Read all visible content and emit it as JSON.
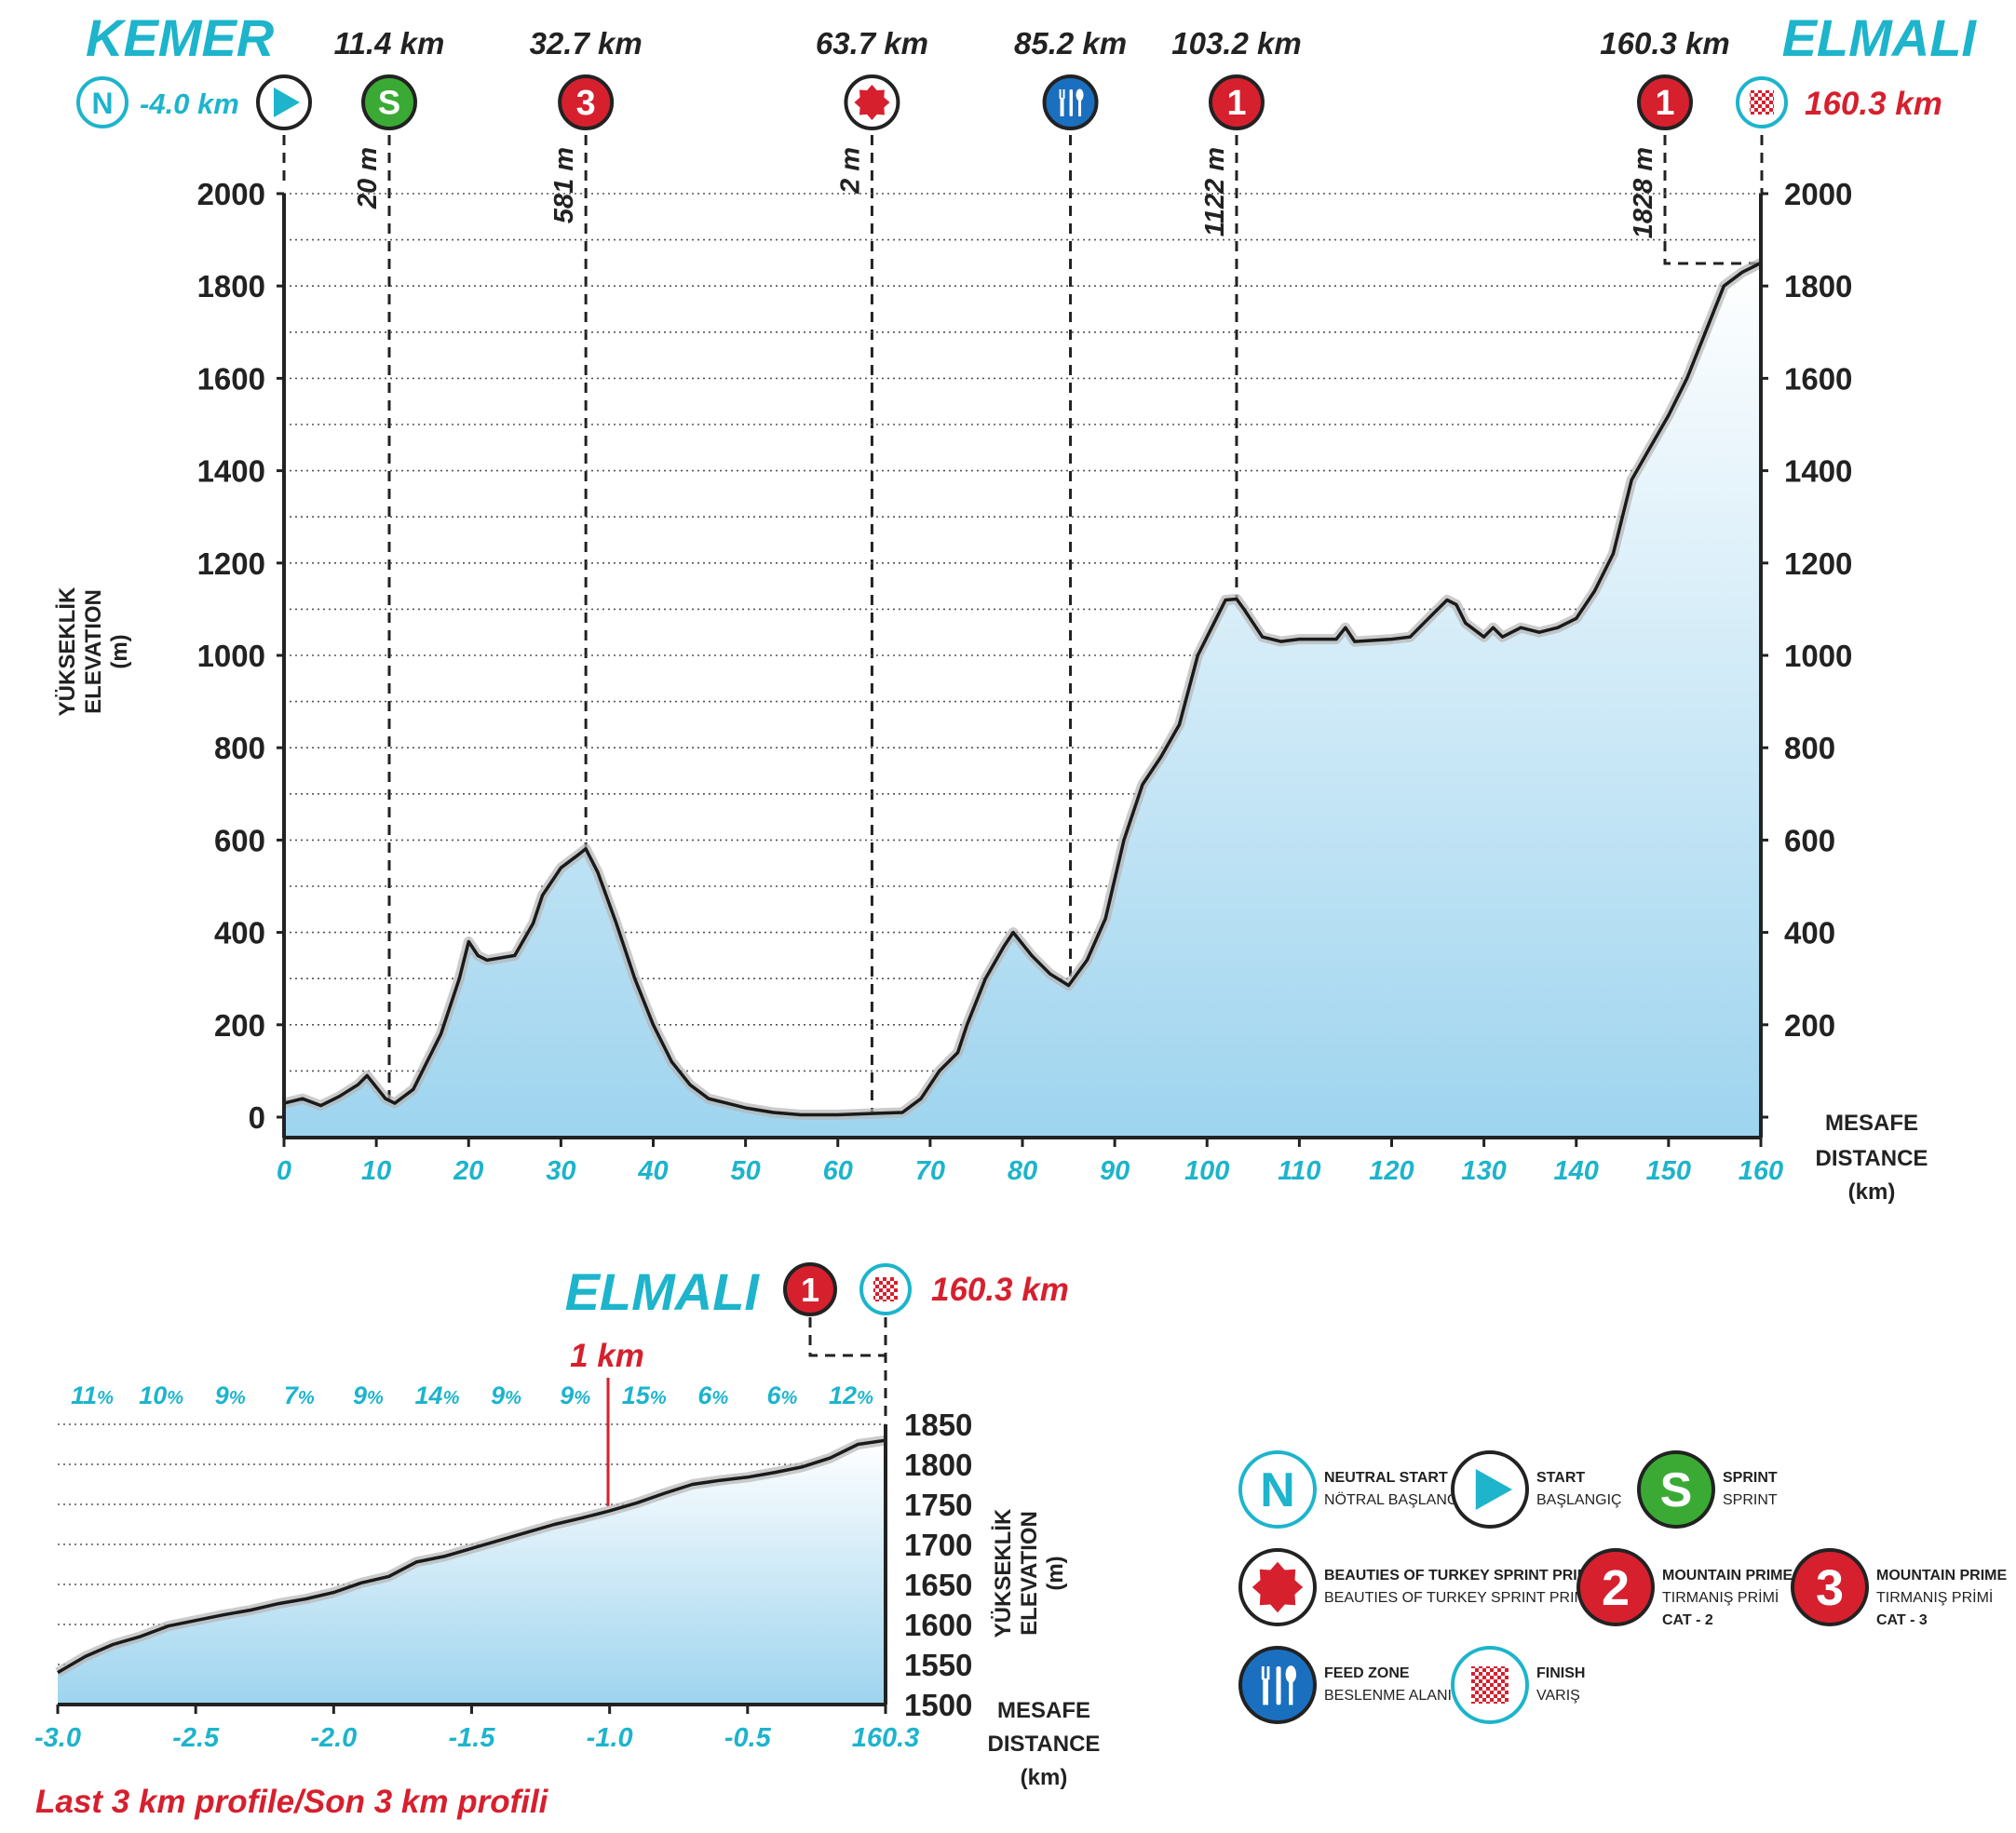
{
  "colors": {
    "accent": "#1db4cc",
    "red": "#d6202e",
    "sprint_green": "#3aaa35",
    "feed_blue": "#1a6fbf",
    "dark": "#222222"
  },
  "header": {
    "start_city": "KEMER",
    "finish_city": "ELMALI",
    "neutral_icon_letter": "N",
    "neutral_km": "-4.0 km",
    "finish_km": "160.3 km"
  },
  "points": [
    {
      "km": 11.4,
      "km_label": "11.4 km",
      "alt_label": "20 m",
      "icon": "sprint-icon",
      "icon_text": "S",
      "color": "#3aaa35"
    },
    {
      "km": 32.7,
      "km_label": "32.7 km",
      "alt_label": "581 m",
      "icon": "mountain-cat3-icon",
      "icon_text": "3",
      "color": "#d6202e"
    },
    {
      "km": 63.7,
      "km_label": "63.7 km",
      "alt_label": "2 m",
      "icon": "beauties-sprint-icon",
      "icon_text": "",
      "color": "#d6202e"
    },
    {
      "km": 85.2,
      "km_label": "85.2 km",
      "alt_label": "",
      "icon": "feed-zone-icon",
      "icon_text": "",
      "color": "#1a6fbf"
    },
    {
      "km": 103.2,
      "km_label": "103.2 km",
      "alt_label": "1122 m",
      "icon": "mountain-cat1-icon",
      "icon_text": "1",
      "color": "#d6202e"
    },
    {
      "km": 160.3,
      "km_label": "160.3 km",
      "alt_label": "1828 m",
      "icon": "mountain-cat1-icon",
      "icon_text": "1",
      "color": "#d6202e"
    }
  ],
  "axis_labels": {
    "y_tr": "YÜKSEKLİK",
    "y_en": "ELEVATION",
    "y_unit": "(m)",
    "x_tr": "MESAFE",
    "x_en": "DISTANCE",
    "x_unit": "(km)"
  },
  "chart_data": [
    {
      "type": "area",
      "title": "",
      "xlabel": "MESAFE DISTANCE (km)",
      "ylabel": "YÜKSEKLİK ELEVATION (m)",
      "xlim": [
        0,
        160
      ],
      "ylim": [
        0,
        2000
      ],
      "x_ticks": [
        0,
        10,
        20,
        30,
        40,
        50,
        60,
        70,
        80,
        90,
        100,
        110,
        120,
        130,
        140,
        150,
        160
      ],
      "y_ticks": [
        0,
        200,
        400,
        600,
        800,
        1000,
        1200,
        1400,
        1600,
        1800,
        2000
      ],
      "grid": true,
      "x": [
        0,
        2,
        4,
        6,
        8,
        9,
        11,
        12,
        14,
        17,
        19,
        20,
        21,
        22,
        25,
        27,
        28,
        30,
        32,
        32.7,
        34,
        36,
        38,
        40,
        42,
        44,
        46,
        48,
        50,
        53,
        56,
        60,
        64,
        67,
        69,
        71,
        73,
        74,
        76,
        78,
        79,
        81,
        83,
        85,
        87,
        89,
        91,
        93,
        95,
        97,
        99,
        101,
        102,
        103.2,
        104,
        106,
        108,
        110,
        114,
        115,
        116,
        120,
        122,
        124,
        126,
        127,
        128,
        130,
        131,
        132,
        133,
        134,
        136,
        138,
        140,
        142,
        144,
        146,
        148,
        150,
        152,
        154,
        156,
        158,
        159,
        160
      ],
      "y": [
        30,
        40,
        25,
        45,
        70,
        90,
        40,
        30,
        60,
        180,
        300,
        380,
        350,
        340,
        350,
        420,
        480,
        540,
        570,
        581,
        530,
        420,
        300,
        200,
        120,
        70,
        40,
        30,
        20,
        10,
        5,
        5,
        8,
        10,
        40,
        100,
        140,
        200,
        300,
        370,
        400,
        350,
        310,
        285,
        340,
        430,
        600,
        720,
        780,
        850,
        1000,
        1080,
        1120,
        1122,
        1100,
        1040,
        1030,
        1035,
        1035,
        1060,
        1030,
        1035,
        1040,
        1080,
        1120,
        1110,
        1070,
        1040,
        1060,
        1040,
        1050,
        1060,
        1050,
        1060,
        1080,
        1140,
        1220,
        1380,
        1450,
        1520,
        1600,
        1700,
        1800,
        1830,
        1840,
        1850
      ]
    },
    {
      "type": "area",
      "title": "Last 3 km profile/Son 3 km profili",
      "xlabel": "MESAFE DISTANCE (km)",
      "ylabel": "YÜKSEKLİK ELEVATION (m)",
      "xlim": [
        -3.0,
        0
      ],
      "ylim": [
        1500,
        1850
      ],
      "x_tick_labels": [
        "-3.0",
        "-2.5",
        "-2.0",
        "-1.5",
        "-1.0",
        "-0.5",
        "160.3"
      ],
      "y_ticks": [
        1500,
        1550,
        1600,
        1650,
        1700,
        1750,
        1800,
        1850
      ],
      "grid": true,
      "x": [
        -3.0,
        -2.9,
        -2.8,
        -2.7,
        -2.6,
        -2.5,
        -2.4,
        -2.3,
        -2.2,
        -2.1,
        -2.0,
        -1.9,
        -1.8,
        -1.7,
        -1.6,
        -1.5,
        -1.4,
        -1.3,
        -1.2,
        -1.1,
        -1.0,
        -0.9,
        -0.8,
        -0.7,
        -0.6,
        -0.5,
        -0.4,
        -0.3,
        -0.2,
        -0.1,
        0.0
      ],
      "y": [
        1540,
        1560,
        1575,
        1585,
        1598,
        1605,
        1612,
        1618,
        1626,
        1632,
        1640,
        1652,
        1660,
        1678,
        1685,
        1695,
        1705,
        1715,
        1725,
        1733,
        1742,
        1752,
        1764,
        1775,
        1780,
        1784,
        1790,
        1797,
        1808,
        1825,
        1830
      ],
      "gradients_pct": [
        "11%",
        "10%",
        "9%",
        "7%",
        "9%",
        "14%",
        "9%",
        "9%",
        "15%",
        "6%",
        "6%",
        "12%"
      ],
      "one_km_label": "1 km"
    }
  ],
  "last3": {
    "city": "ELMALI",
    "icon_letter": "1",
    "finish_km": "160.3 km",
    "one_km": "1 km",
    "caption": "Last 3 km profile/Son 3 km profili"
  },
  "legend": [
    {
      "icon": "neutral-start-icon",
      "letter": "N",
      "title": "NEUTRAL START",
      "sub": "NÖTRAL BAŞLANGIÇ",
      "sub2": ""
    },
    {
      "icon": "start-icon",
      "letter": "",
      "title": "START",
      "sub": "BAŞLANGIÇ",
      "sub2": ""
    },
    {
      "icon": "sprint-icon",
      "letter": "S",
      "title": "SPRINT",
      "sub": "SPRINT",
      "sub2": ""
    },
    {
      "icon": "beauties-sprint-icon",
      "letter": "",
      "title": "BEAUTIES OF TURKEY SPRINT PRIME",
      "sub": "BEAUTIES OF TURKEY SPRINT PRIMI",
      "sub2": ""
    },
    {
      "icon": "mountain-cat2-icon",
      "letter": "2",
      "title": "MOUNTAIN PRIME",
      "sub": "TIRMANIŞ PRİMİ",
      "sub2": "CAT - 2"
    },
    {
      "icon": "mountain-cat3-icon",
      "letter": "3",
      "title": "MOUNTAIN PRIME",
      "sub": "TIRMANIŞ PRİMİ",
      "sub2": "CAT - 3"
    },
    {
      "icon": "feed-zone-icon",
      "letter": "",
      "title": "FEED ZONE",
      "sub": "BESLENME ALANI",
      "sub2": ""
    },
    {
      "icon": "finish-icon",
      "letter": "",
      "title": "FINISH",
      "sub": "VARIŞ",
      "sub2": ""
    }
  ]
}
